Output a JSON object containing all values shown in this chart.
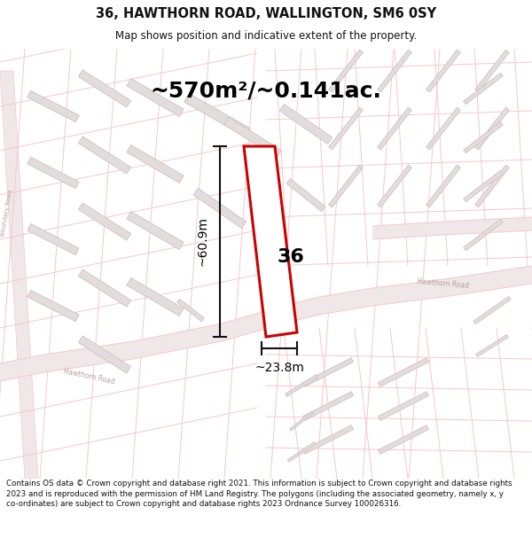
{
  "title": "36, HAWTHORN ROAD, WALLINGTON, SM6 0SY",
  "subtitle": "Map shows position and indicative extent of the property.",
  "area_text": "~570m²/~0.141ac.",
  "dim_width": "~23.8m",
  "dim_height": "~60.9m",
  "label": "36",
  "footer": "Contains OS data © Crown copyright and database right 2021. This information is subject to Crown copyright and database rights 2023 and is reproduced with the permission of HM Land Registry. The polygons (including the associated geometry, namely x, y co-ordinates) are subject to Crown copyright and database rights 2023 Ordnance Survey 100026316.",
  "bg_color": "#ffffff",
  "map_bg": "#ffffff",
  "road_line_color": "#f5c8c8",
  "road_fill_color": "#f0e8e8",
  "building_color": "#e2dcdc",
  "building_outline": "#ccbbbb",
  "highlight_color": "#cc0000",
  "road_label_color": "#b8a0a0",
  "dim_line_color": "#111111",
  "text_color": "#111111"
}
